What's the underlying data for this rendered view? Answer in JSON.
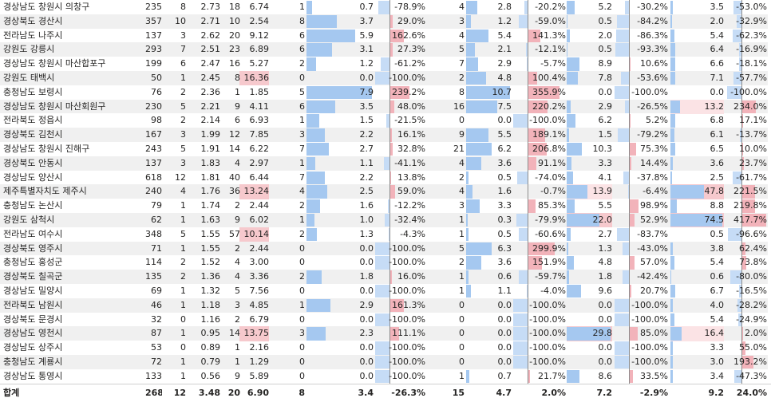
{
  "columns": [
    "region",
    "c1",
    "c2",
    "c3",
    "c4",
    "c5",
    "c6",
    "c7",
    "c8",
    "c9",
    "c10",
    "c11",
    "c12",
    "c13",
    "c14",
    "c15"
  ],
  "rows": [
    [
      "경상남도 창원시 의창구",
      "235",
      "8",
      "2.73",
      "18",
      "6.74",
      "1",
      "0.7",
      "-78.9%",
      "4",
      "2.8",
      "-20.2%",
      "5.2",
      "-30.2%",
      "3.5",
      "-53.0%"
    ],
    [
      "경상북도 경산시",
      "357",
      "10",
      "2.71",
      "10",
      "2.54",
      "8",
      "3.7",
      "29.0%",
      "3",
      "1.2",
      "-59.0%",
      "0.5",
      "-84.2%",
      "2.0",
      "-32.9%"
    ],
    [
      "전라남도 나주시",
      "137",
      "3",
      "2.62",
      "20",
      "9.12",
      "6",
      "5.9",
      "162.6%",
      "4",
      "5.4",
      "141.3%",
      "2.0",
      "-86.3%",
      "5.4",
      "-62.3%"
    ],
    [
      "강원도 강릉시",
      "293",
      "7",
      "2.51",
      "23",
      "6.89",
      "6",
      "3.1",
      "27.3%",
      "5",
      "2.1",
      "-12.1%",
      "0.5",
      "-93.3%",
      "6.4",
      "-16.9%"
    ],
    [
      "경상남도 창원시 마산합포구",
      "199",
      "6",
      "2.47",
      "16",
      "5.27",
      "2",
      "1.2",
      "-61.2%",
      "7",
      "2.9",
      "-5.7%",
      "8.9",
      "10.6%",
      "6.6",
      "-18.1%"
    ],
    [
      "강원도 태백시",
      "50",
      "1",
      "2.45",
      "8",
      "16.36",
      "0",
      "0.0",
      "-100.0%",
      "2",
      "4.8",
      "100.4%",
      "7.8",
      "-53.6%",
      "7.1",
      "-57.7%"
    ],
    [
      "충청남도 보령시",
      "76",
      "2",
      "2.36",
      "1",
      "1.85",
      "5",
      "7.9",
      "239.2%",
      "8",
      "10.7",
      "355.9%",
      "0.0",
      "-100.0%",
      "0.0",
      "-100.0%"
    ],
    [
      "경상남도 창원시 마산회원구",
      "230",
      "5",
      "2.21",
      "9",
      "4.11",
      "6",
      "3.5",
      "48.0%",
      "16",
      "7.5",
      "220.2%",
      "2.9",
      "-26.5%",
      "13.2",
      "234.0%"
    ],
    [
      "전라북도 정읍시",
      "98",
      "2",
      "2.14",
      "6",
      "6.93",
      "1",
      "1.5",
      "-21.5%",
      "0",
      "0.0",
      "-100.0%",
      "6.2",
      "5.2%",
      "6.8",
      "17.1%"
    ],
    [
      "경상북도 김천시",
      "167",
      "3",
      "1.99",
      "12",
      "7.85",
      "3",
      "2.2",
      "16.1%",
      "9",
      "5.5",
      "189.1%",
      "1.5",
      "-79.2%",
      "6.1",
      "-13.7%"
    ],
    [
      "경상남도 창원시 진해구",
      "243",
      "5",
      "1.91",
      "14",
      "6.22",
      "7",
      "2.7",
      "32.8%",
      "21",
      "6.2",
      "206.8%",
      "10.3",
      "75.3%",
      "6.5",
      "10.0%"
    ],
    [
      "경상북도 안동시",
      "137",
      "3",
      "1.83",
      "4",
      "2.97",
      "1",
      "1.1",
      "-41.1%",
      "4",
      "3.6",
      "91.1%",
      "3.3",
      "14.4%",
      "3.6",
      "23.7%"
    ],
    [
      "경상남도 양산시",
      "618",
      "12",
      "1.81",
      "40",
      "6.44",
      "7",
      "2.2",
      "13.8%",
      "2",
      "0.5",
      "-74.0%",
      "4.1",
      "-37.8%",
      "2.5",
      "-61.7%"
    ],
    [
      "제주특별자치도 제주시",
      "240",
      "4",
      "1.76",
      "36",
      "13.24",
      "4",
      "2.5",
      "59.0%",
      "4",
      "1.6",
      "-0.7%",
      "13.9",
      "-6.4%",
      "47.8",
      "221.5%"
    ],
    [
      "충청남도 논산시",
      "79",
      "1",
      "1.74",
      "2",
      "2.44",
      "2",
      "1.6",
      "-12.2%",
      "3",
      "3.3",
      "85.3%",
      "5.5",
      "98.9%",
      "8.8",
      "219.8%"
    ],
    [
      "강원도 삼척시",
      "62",
      "1",
      "1.63",
      "9",
      "6.02",
      "1",
      "1.0",
      "-32.4%",
      "1",
      "0.3",
      "-79.9%",
      "22.0",
      "52.9%",
      "74.5",
      "417.7%"
    ],
    [
      "전라남도 여수시",
      "348",
      "5",
      "1.55",
      "57",
      "10.14",
      "2",
      "1.3",
      "-4.3%",
      "1",
      "0.5",
      "-60.6%",
      "2.7",
      "-83.7%",
      "0.5",
      "-96.6%"
    ],
    [
      "경상북도 영주시",
      "71",
      "1",
      "1.55",
      "2",
      "2.44",
      "0",
      "0.0",
      "-100.0%",
      "5",
      "6.3",
      "299.9%",
      "1.3",
      "-43.0%",
      "3.8",
      "62.4%"
    ],
    [
      "충청남도 홍성군",
      "114",
      "2",
      "1.52",
      "4",
      "3.00",
      "0",
      "0.0",
      "-100.0%",
      "2",
      "3.6",
      "151.9%",
      "4.8",
      "57.0%",
      "5.4",
      "73.8%"
    ],
    [
      "경상북도 칠곡군",
      "135",
      "2",
      "1.36",
      "4",
      "3.36",
      "2",
      "1.8",
      "16.0%",
      "1",
      "0.6",
      "-59.7%",
      "1.8",
      "-42.4%",
      "0.6",
      "-80.0%"
    ],
    [
      "경상남도 밀양시",
      "69",
      "1",
      "1.32",
      "5",
      "7.56",
      "0",
      "0.0",
      "-100.0%",
      "1",
      "1.1",
      "-4.0%",
      "9.6",
      "20.7%",
      "6.7",
      "-16.5%"
    ],
    [
      "전라북도 남원시",
      "46",
      "1",
      "1.18",
      "3",
      "4.85",
      "1",
      "2.9",
      "161.3%",
      "0",
      "0.0",
      "-100.0%",
      "0.0",
      "-100.0%",
      "4.0",
      "-28.2%"
    ],
    [
      "경상북도 문경시",
      "32",
      "0",
      "1.16",
      "2",
      "6.79",
      "0",
      "0.0",
      "-100.0%",
      "0",
      "0.0",
      "-100.0%",
      "0.0",
      "-100.0%",
      "5.4",
      "-24.9%"
    ],
    [
      "경상남도 영천시",
      "87",
      "1",
      "0.95",
      "14",
      "13.75",
      "3",
      "2.3",
      "111.1%",
      "0",
      "0.0",
      "-100.0%",
      "29.8",
      "85.0%",
      "16.4",
      "2.0%"
    ],
    [
      "경상남도 상주시",
      "53",
      "0",
      "0.89",
      "1",
      "2.16",
      "0",
      "0.0",
      "-100.0%",
      "0",
      "0.0",
      "-100.0%",
      "0.0",
      "-100.0%",
      "3.3",
      "55.0%"
    ],
    [
      "충청남도 계룡시",
      "72",
      "1",
      "0.79",
      "1",
      "1.29",
      "0",
      "0.0",
      "-100.0%",
      "0",
      "0.0",
      "-100.0%",
      "0.0",
      "-100.0%",
      "3.0",
      "193.2%"
    ],
    [
      "경상남도 통영시",
      "133",
      "1",
      "0.56",
      "9",
      "5.89",
      "0",
      "0.0",
      "-100.0%",
      "1",
      "0.7",
      "21.7%",
      "8.6",
      "33.5%",
      "3.4",
      "-47.3%"
    ]
  ],
  "total": [
    "합계",
    "268",
    "12",
    "3.48",
    "20",
    "6.90",
    "8",
    "3.4",
    "-26.3%",
    "15",
    "4.7",
    "2.0%",
    "7.2",
    "-2.9%",
    "9.2",
    "24.0%"
  ]
}
